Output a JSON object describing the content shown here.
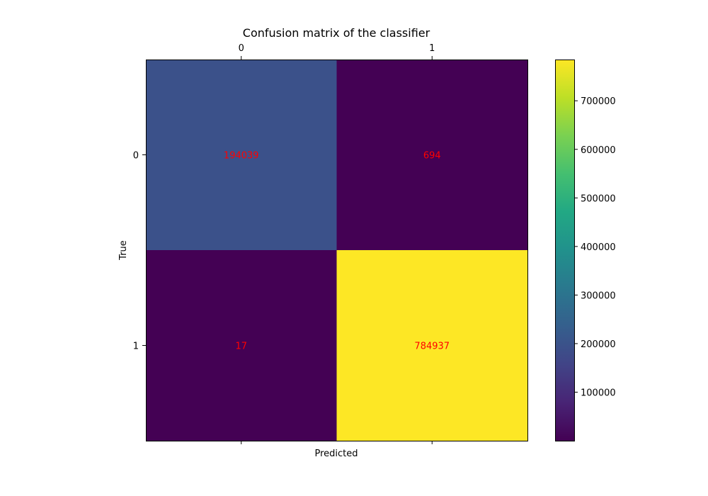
{
  "chart_data": {
    "type": "heatmap",
    "title": "Confusion matrix of the classifier",
    "xlabel": "Predicted",
    "ylabel": "True",
    "x_tick_labels": [
      "0",
      "1"
    ],
    "y_tick_labels": [
      "0",
      "1"
    ],
    "matrix": [
      [
        194039,
        694
      ],
      [
        17,
        784937
      ]
    ],
    "cell_label_color": "#ff0000",
    "colormap": "viridis",
    "colorbar": {
      "range": [
        17,
        784937
      ],
      "ticks": [
        100000,
        200000,
        300000,
        400000,
        500000,
        600000,
        700000
      ],
      "tick_labels": [
        "100000",
        "200000",
        "300000",
        "400000",
        "500000",
        "600000",
        "700000"
      ]
    },
    "grid": false,
    "x_ticks_position": "top and bottom (labels on top)"
  }
}
